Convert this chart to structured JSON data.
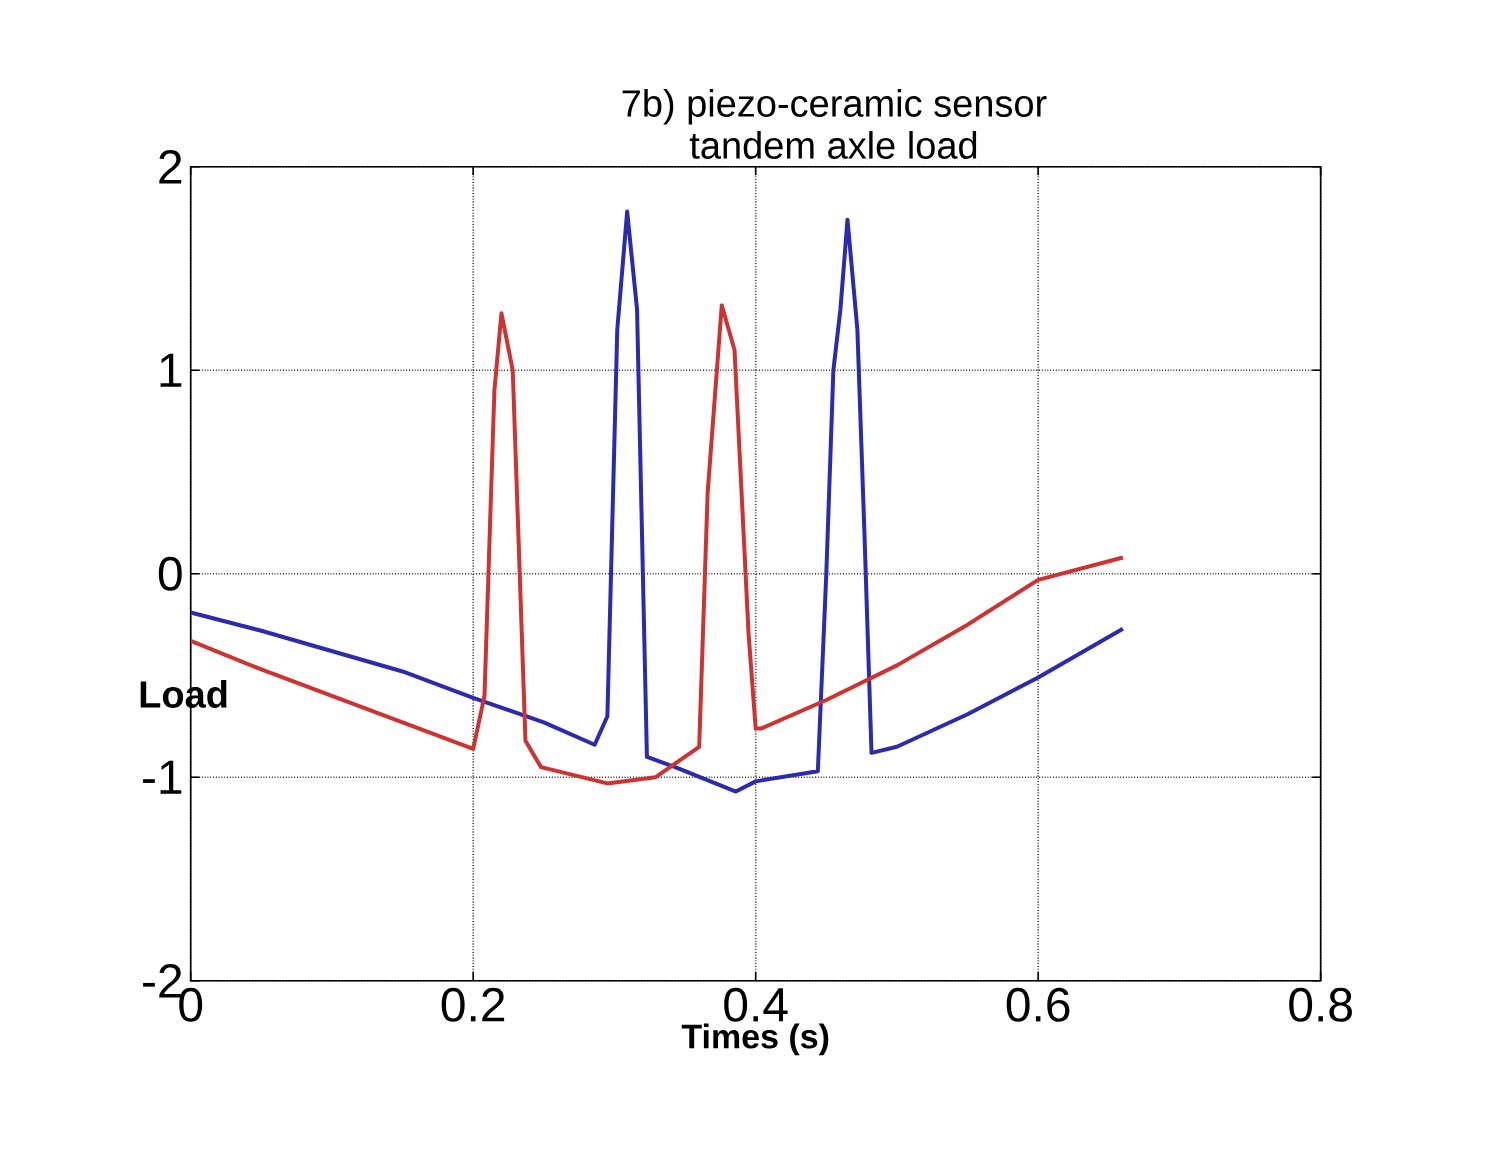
{
  "chart_data": {
    "type": "line",
    "title": "7b) piezo-ceramic sensor",
    "subtitle": "tandem axle load",
    "xlabel": "Times (s)",
    "ylabel": "Load",
    "xlim": [
      0,
      0.8
    ],
    "ylim": [
      -2,
      2
    ],
    "xticks": [
      0,
      0.2,
      0.4,
      0.6,
      0.8
    ],
    "yticks": [
      -2,
      -1,
      0,
      1,
      2
    ],
    "grid": true,
    "line_style": "solid",
    "series": [
      {
        "color": "#2b2bb0",
        "x": [
          0,
          0.05,
          0.1,
          0.15,
          0.2,
          0.25,
          0.286,
          0.295,
          0.302,
          0.309,
          0.316,
          0.323,
          0.343,
          0.386,
          0.4,
          0.444,
          0.45,
          0.455,
          0.46,
          0.465,
          0.472,
          0.477,
          0.482,
          0.5,
          0.55,
          0.6,
          0.66
        ],
        "values": [
          -0.19,
          -0.28,
          -0.38,
          -0.48,
          -0.61,
          -0.73,
          -0.84,
          -0.7,
          1.2,
          1.78,
          1.3,
          -0.9,
          -0.95,
          -1.07,
          -1.02,
          -0.97,
          0.0,
          1.0,
          1.3,
          1.74,
          1.2,
          0.2,
          -0.88,
          -0.85,
          -0.69,
          -0.51,
          -0.27
        ]
      },
      {
        "color": "#cc3333",
        "x": [
          0,
          0.05,
          0.1,
          0.15,
          0.2,
          0.208,
          0.215,
          0.22,
          0.228,
          0.237,
          0.248,
          0.295,
          0.329,
          0.36,
          0.366,
          0.376,
          0.385,
          0.395,
          0.4,
          0.404,
          0.45,
          0.5,
          0.55,
          0.6,
          0.66
        ],
        "values": [
          -0.33,
          -0.47,
          -0.6,
          -0.73,
          -0.86,
          -0.6,
          0.9,
          1.28,
          1.0,
          -0.82,
          -0.95,
          -1.03,
          -1.0,
          -0.85,
          0.4,
          1.32,
          1.1,
          -0.3,
          -0.76,
          -0.76,
          -0.62,
          -0.45,
          -0.25,
          -0.03,
          0.08
        ]
      }
    ]
  }
}
